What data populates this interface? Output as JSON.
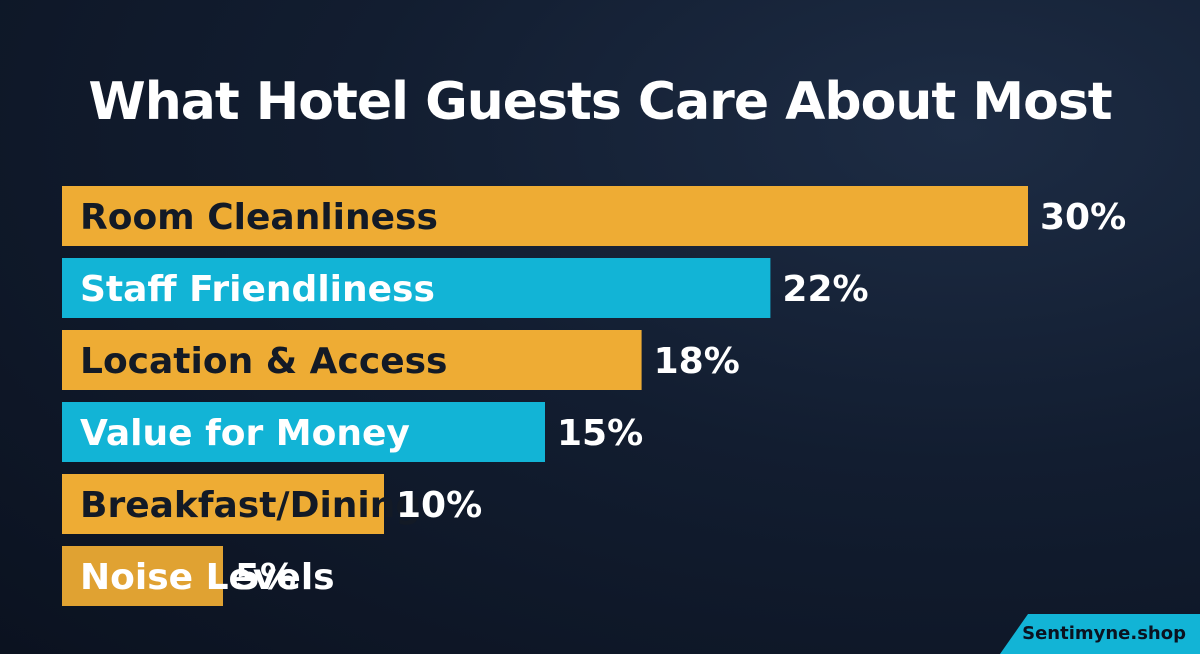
{
  "chart_data": {
    "type": "bar",
    "orientation": "horizontal",
    "title": "What Hotel Guests Care About Most",
    "categories": [
      "Room Cleanliness",
      "Staff Friendliness",
      "Location & Access",
      "Value for Money",
      "Breakfast/Dining",
      "Noise Levels"
    ],
    "values": [
      30,
      22,
      18,
      15,
      10,
      5
    ],
    "value_labels": [
      "30%",
      "22%",
      "18%",
      "15%",
      "10%",
      "5%"
    ],
    "unit": "%",
    "xlim": [
      0,
      30
    ],
    "grid": false,
    "bar_colors": [
      "#eeac34",
      "#12b4d6",
      "#eeac34",
      "#12b4d6",
      "#eeac34",
      "#e0a232"
    ],
    "label_colors": [
      "#131a26",
      "#ffffff",
      "#131a26",
      "#ffffff",
      "#131a26",
      "#ffffff"
    ]
  },
  "watermark": {
    "text": "Sentimyne.shop",
    "color": "#12b4d6"
  },
  "colors": {
    "background": "#121d30",
    "title": "#ffffff",
    "value_text": "#ffffff"
  }
}
